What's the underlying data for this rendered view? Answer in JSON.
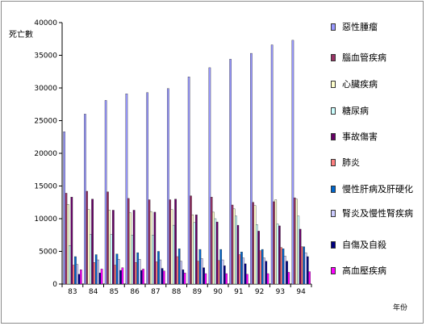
{
  "chart_data": {
    "type": "bar",
    "title": "",
    "ylabel": "死亡數",
    "xlabel": "年份",
    "ylim": [
      0,
      40000
    ],
    "yticks": [
      0,
      5000,
      10000,
      15000,
      20000,
      25000,
      30000,
      35000,
      40000
    ],
    "grid": false,
    "legend_position": "right",
    "categories": [
      "83",
      "84",
      "85",
      "86",
      "87",
      "88",
      "89",
      "90",
      "91",
      "92",
      "93",
      "94"
    ],
    "series": [
      {
        "name": "惡性腫瘤",
        "color": "#9999ff",
        "values": [
          23300,
          26000,
          28100,
          29100,
          29300,
          29900,
          31700,
          33100,
          34400,
          35300,
          36600,
          37300
        ]
      },
      {
        "name": "腦血管疾病",
        "color": "#993366",
        "values": [
          13900,
          14200,
          14100,
          13100,
          12900,
          12900,
          13500,
          13300,
          12100,
          12500,
          12600,
          13200
        ]
      },
      {
        "name": "心臟疾病",
        "color": "#ffffcc",
        "values": [
          12200,
          11400,
          11300,
          10900,
          11100,
          11400,
          10600,
          11000,
          11500,
          12000,
          12900,
          13000
        ]
      },
      {
        "name": "糖尿病",
        "color": "#ccffff",
        "values": [
          5900,
          7600,
          7600,
          7500,
          7500,
          9000,
          9400,
          10000,
          10400,
          9100,
          9200,
          10400
        ]
      },
      {
        "name": "事故傷害",
        "color": "#660066",
        "values": [
          13300,
          13000,
          11300,
          11300,
          11000,
          13000,
          10600,
          9500,
          9000,
          8100,
          8900,
          8400
        ]
      },
      {
        "name": "肺炎",
        "color": "#ff8080",
        "values": [
          2900,
          3300,
          2900,
          3300,
          3400,
          4200,
          3500,
          3600,
          4500,
          5100,
          5600,
          5700
        ]
      },
      {
        "name": "慢性肝病及肝硬化",
        "color": "#0066cc",
        "values": [
          4200,
          4500,
          4600,
          4800,
          5000,
          5400,
          5300,
          5300,
          4900,
          5300,
          5400,
          5700
        ]
      },
      {
        "name": "腎炎及慢性腎疾病",
        "color": "#ccccff",
        "values": [
          3000,
          3700,
          3800,
          3800,
          3700,
          3500,
          3900,
          3700,
          4000,
          4000,
          4300,
          4800
        ]
      },
      {
        "name": "自傷及自殺",
        "color": "#000080",
        "values": [
          1500,
          1700,
          2100,
          2100,
          2400,
          2200,
          2500,
          2800,
          3100,
          3500,
          3500,
          4200
        ]
      },
      {
        "name": "高血壓疾病",
        "color": "#ff00ff",
        "values": [
          2200,
          2300,
          2500,
          2300,
          2000,
          1700,
          1600,
          1600,
          1500,
          1600,
          1800,
          1900
        ]
      }
    ]
  }
}
